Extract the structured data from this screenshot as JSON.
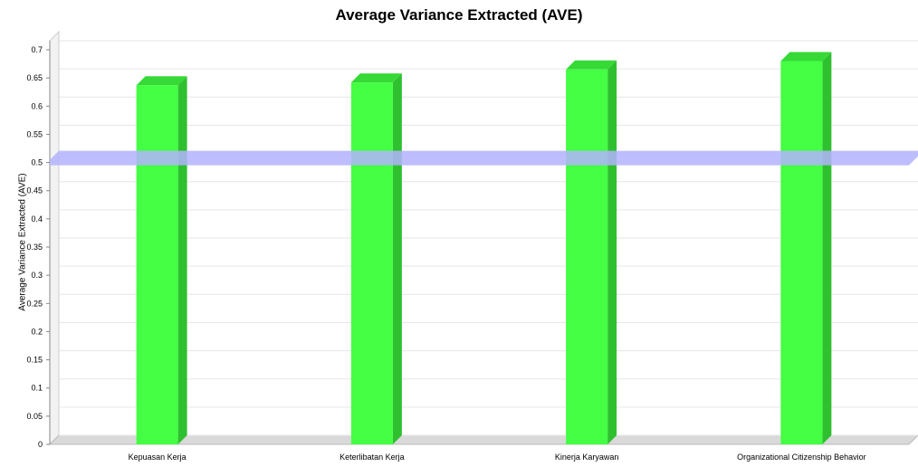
{
  "chart_data": {
    "type": "bar",
    "title": "Average Variance Extracted (AVE)",
    "xlabel": "",
    "ylabel": "Average Variance Extracted (AVE)",
    "categories": [
      "Kepuasan Kerja",
      "Keterlibatan Kerja",
      "Kinerja Karyawan",
      "Organizational Citizenship Behavior"
    ],
    "series": [
      {
        "values": [
          0.637,
          0.642,
          0.665,
          0.68
        ]
      }
    ],
    "ylim": [
      0,
      0.7
    ],
    "yticks": [
      "0",
      "0.05",
      "0.1",
      "0.15",
      "0.2",
      "0.25",
      "0.3",
      "0.35",
      "0.4",
      "0.45",
      "0.5",
      "0.55",
      "0.6",
      "0.65",
      "0.7"
    ],
    "reference_line": 0.5,
    "grid": true,
    "colors": {
      "bar": "#44ff44",
      "bar_side": "#2fc02f",
      "bar_top": "#36d936",
      "reference_line": "#b3b3ff",
      "grid": "#e6e6e6"
    }
  }
}
